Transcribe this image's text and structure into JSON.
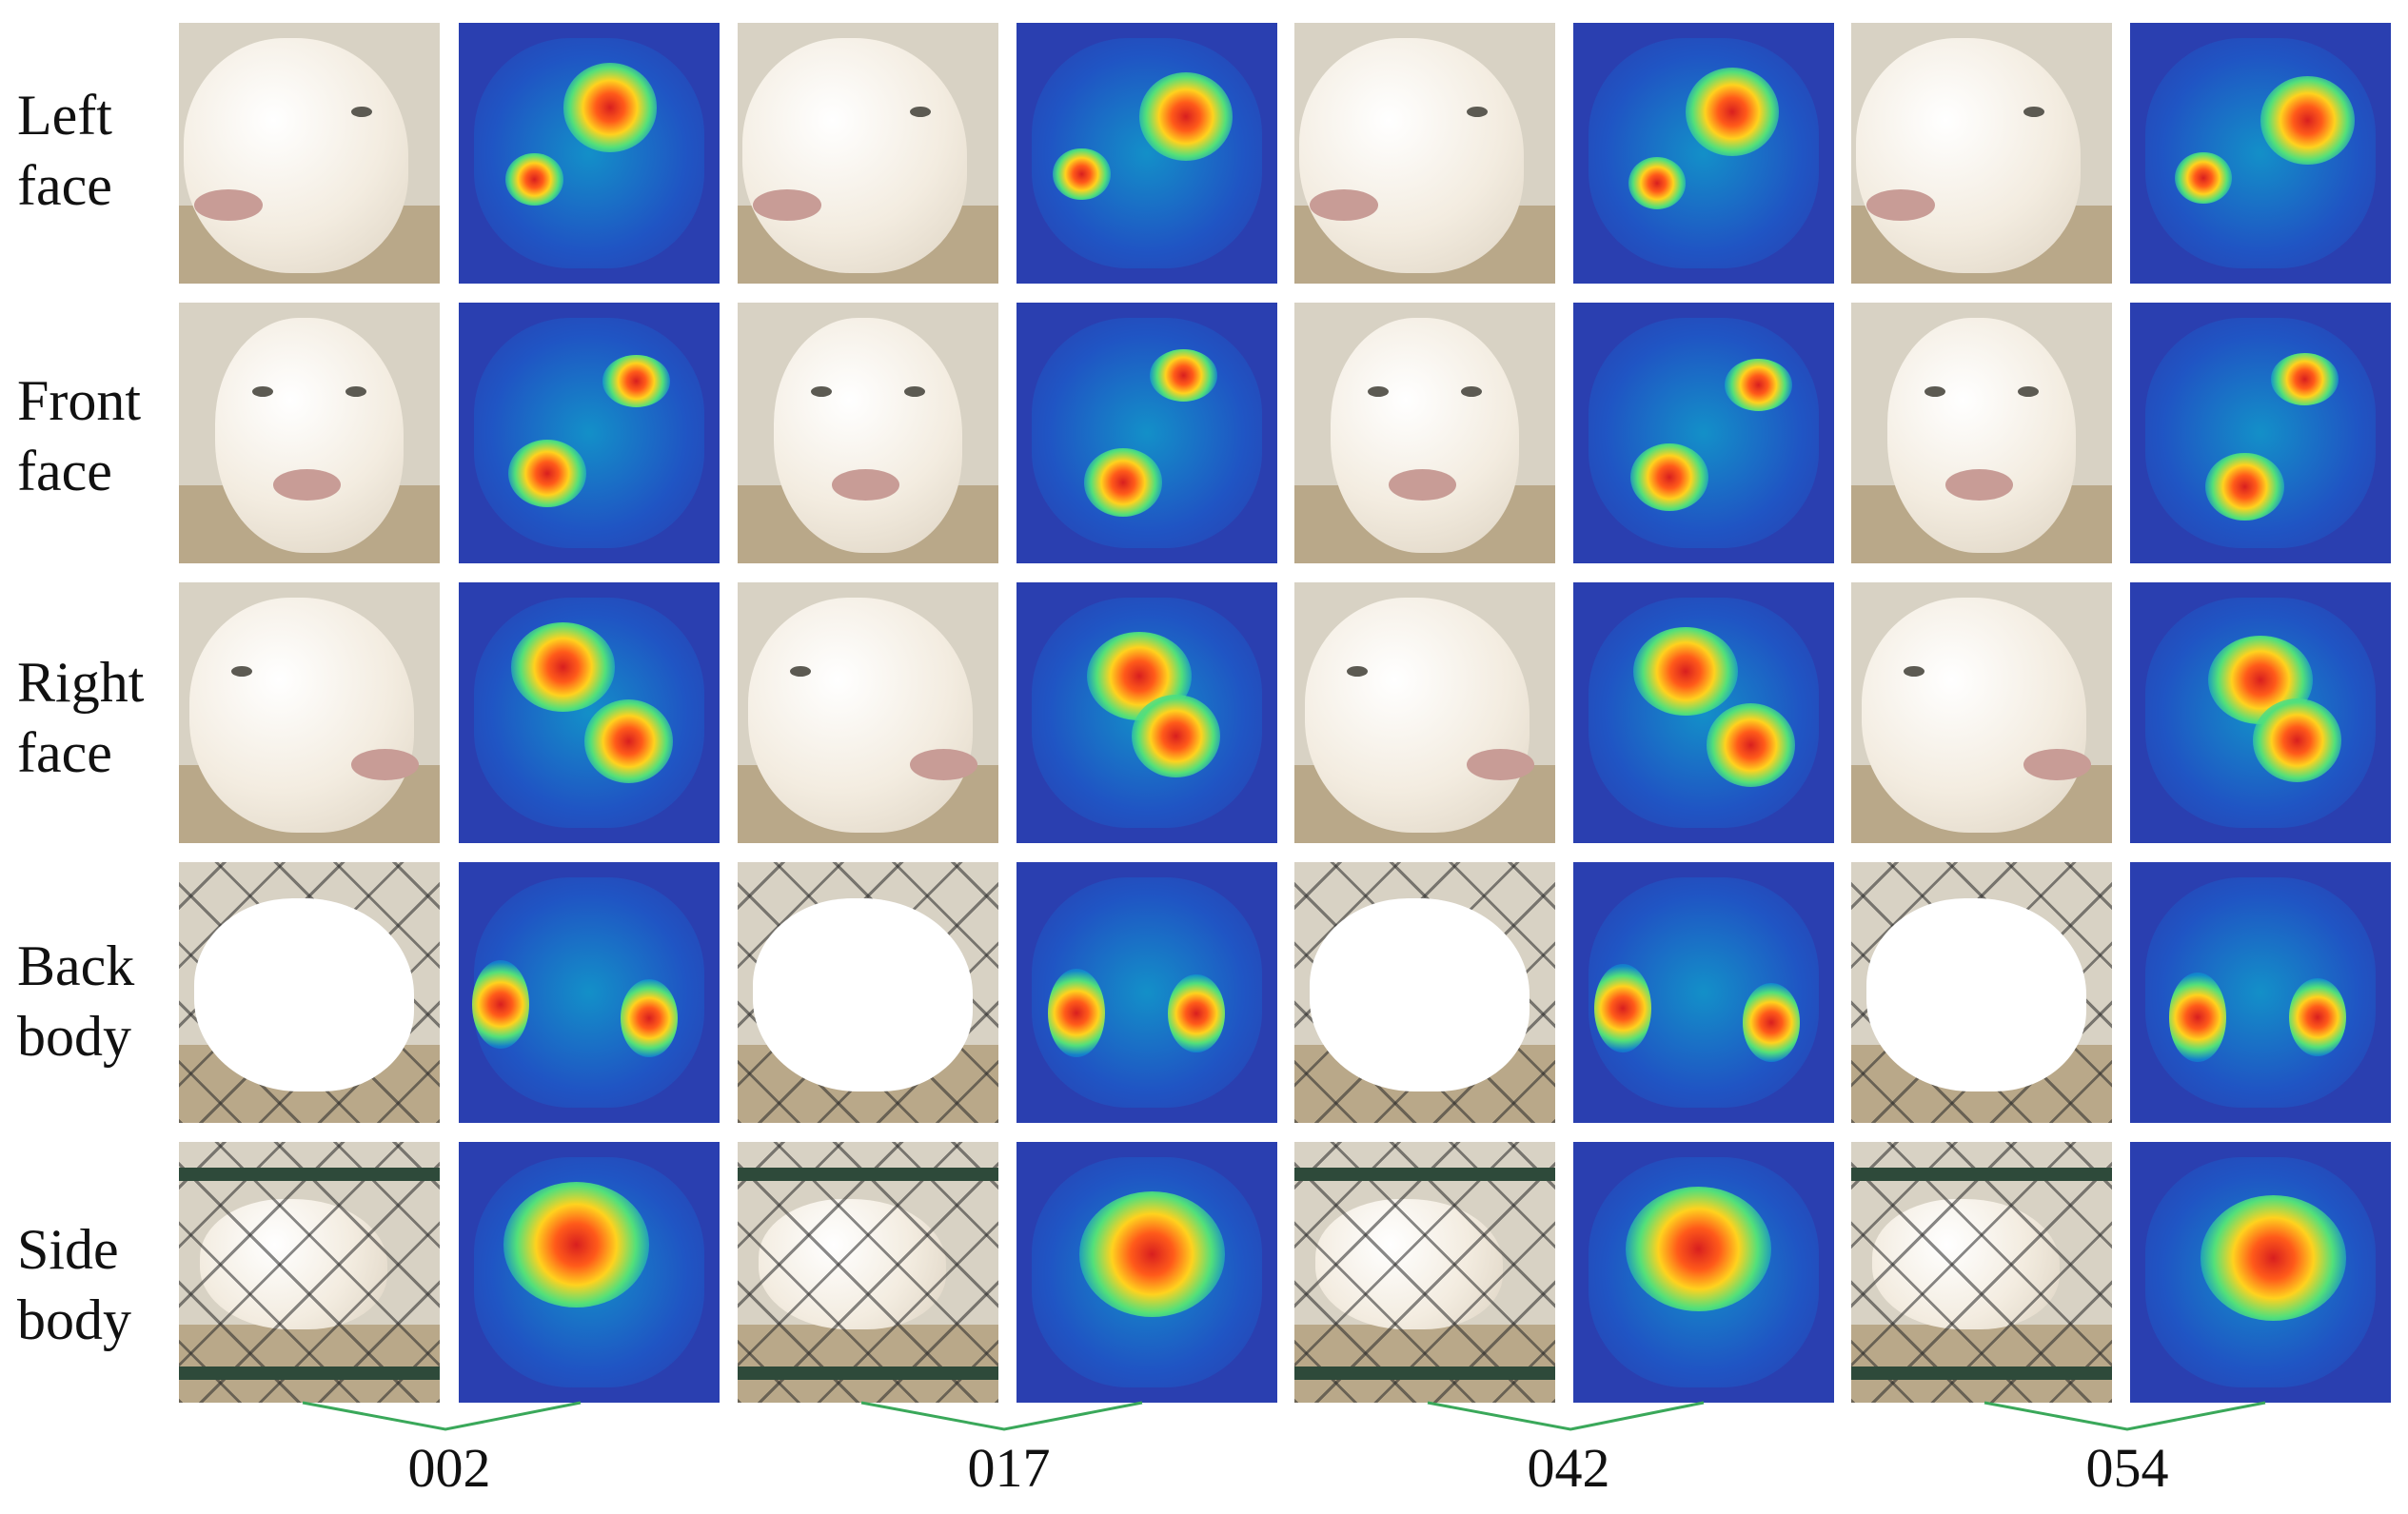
{
  "rows": [
    {
      "line1": "Left",
      "line2": "face"
    },
    {
      "line1": "Front",
      "line2": "face"
    },
    {
      "line1": "Right",
      "line2": "face"
    },
    {
      "line1": "Back",
      "line2": "body"
    },
    {
      "line1": "Side",
      "line2": "body"
    }
  ],
  "groups": [
    {
      "id": "002"
    },
    {
      "id": "017"
    },
    {
      "id": "042"
    },
    {
      "id": "054"
    }
  ],
  "colors": {
    "bracket": "#3aa85a",
    "heat_base": "#2a3fb0",
    "text": "#111111"
  }
}
